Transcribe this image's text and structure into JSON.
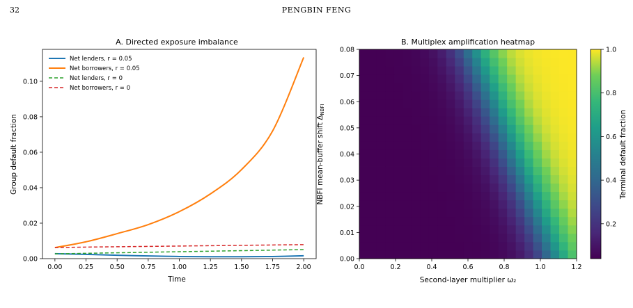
{
  "header": {
    "page_number": "32",
    "author": "PENGBIN FENG"
  },
  "chart_data": [
    {
      "type": "line",
      "title": "A. Directed exposure imbalance",
      "xlabel": "Time",
      "ylabel": "Group default fraction",
      "xlim": [
        -0.1,
        2.1
      ],
      "ylim": [
        0,
        0.118
      ],
      "x_ticks": [
        0.0,
        0.25,
        0.5,
        0.75,
        1.0,
        1.25,
        1.5,
        1.75,
        2.0
      ],
      "x_tick_labels": [
        "0.00",
        "0.25",
        "0.50",
        "0.75",
        "1.00",
        "1.25",
        "1.50",
        "1.75",
        "2.00"
      ],
      "y_ticks": [
        0,
        0.02,
        0.04,
        0.06,
        0.08,
        0.1
      ],
      "y_tick_labels": [
        "0.00",
        "0.02",
        "0.04",
        "0.06",
        "0.08",
        "0.10"
      ],
      "legend_position": "top-left",
      "grid": false,
      "series": [
        {
          "name": "Net lenders, r = 0.05",
          "color": "#1f77b4",
          "style": "solid",
          "x": [
            0,
            0.25,
            0.5,
            0.75,
            1.0,
            1.25,
            1.5,
            1.75,
            2.0
          ],
          "values": [
            0.0028,
            0.0024,
            0.0019,
            0.0015,
            0.0012,
            0.0011,
            0.0011,
            0.0012,
            0.0016
          ]
        },
        {
          "name": "Net borrowers, r = 0.05",
          "color": "#ff7f0e",
          "style": "solid",
          "x": [
            0,
            0.25,
            0.5,
            0.75,
            1.0,
            1.25,
            1.5,
            1.75,
            2.0
          ],
          "values": [
            0.0062,
            0.0095,
            0.0141,
            0.0192,
            0.0265,
            0.0365,
            0.0502,
            0.072,
            0.1135
          ]
        },
        {
          "name": "Net lenders, r = 0",
          "color": "#2ca02c",
          "style": "dashed",
          "x": [
            0,
            0.25,
            0.5,
            0.75,
            1.0,
            1.25,
            1.5,
            1.75,
            2.0
          ],
          "values": [
            0.0027,
            0.003,
            0.0033,
            0.0036,
            0.0039,
            0.0042,
            0.0045,
            0.0048,
            0.0051
          ]
        },
        {
          "name": "Net borrowers, r = 0",
          "color": "#d62728",
          "style": "dashed",
          "x": [
            0,
            0.25,
            0.5,
            0.75,
            1.0,
            1.25,
            1.5,
            1.75,
            2.0
          ],
          "values": [
            0.0062,
            0.0065,
            0.0067,
            0.0069,
            0.0071,
            0.0073,
            0.0075,
            0.0077,
            0.0079
          ]
        }
      ]
    },
    {
      "type": "heatmap",
      "title": "B. Multiplex amplification heatmap",
      "xlabel": "Second-layer multiplier ω₂",
      "ylabel": "NBFI mean-buffer shift Δ_NBFI",
      "ylabel_main": "NBFI mean-buffer shift Δ",
      "ylabel_sub": "NBFI",
      "colorbar_label": "Terminal default fraction",
      "colormap": "viridis",
      "xlim": [
        0,
        1.2
      ],
      "ylim": [
        0,
        0.08
      ],
      "n_cols": 25,
      "n_rows": 25,
      "x_ticks": [
        0.0,
        0.2,
        0.4,
        0.6,
        0.8,
        1.0,
        1.2
      ],
      "x_tick_labels": [
        "0.0",
        "0.2",
        "0.4",
        "0.6",
        "0.8",
        "1.0",
        "1.2"
      ],
      "y_ticks": [
        0,
        0.01,
        0.02,
        0.03,
        0.04,
        0.05,
        0.06,
        0.07,
        0.08
      ],
      "y_tick_labels": [
        "0.00",
        "0.01",
        "0.02",
        "0.03",
        "0.04",
        "0.05",
        "0.06",
        "0.07",
        "0.08"
      ],
      "colorbar_range": [
        0.04,
        1.0
      ],
      "colorbar_ticks": [
        0.2,
        0.4,
        0.6,
        0.8,
        1.0
      ],
      "colorbar_tick_labels": [
        "0.2",
        "0.4",
        "0.6",
        "0.8",
        "1.0"
      ],
      "transition_omega_at_min_shift": 1.08,
      "transition_omega_at_max_shift": 0.62,
      "min_value": 0.04,
      "max_value": 1.0
    }
  ]
}
